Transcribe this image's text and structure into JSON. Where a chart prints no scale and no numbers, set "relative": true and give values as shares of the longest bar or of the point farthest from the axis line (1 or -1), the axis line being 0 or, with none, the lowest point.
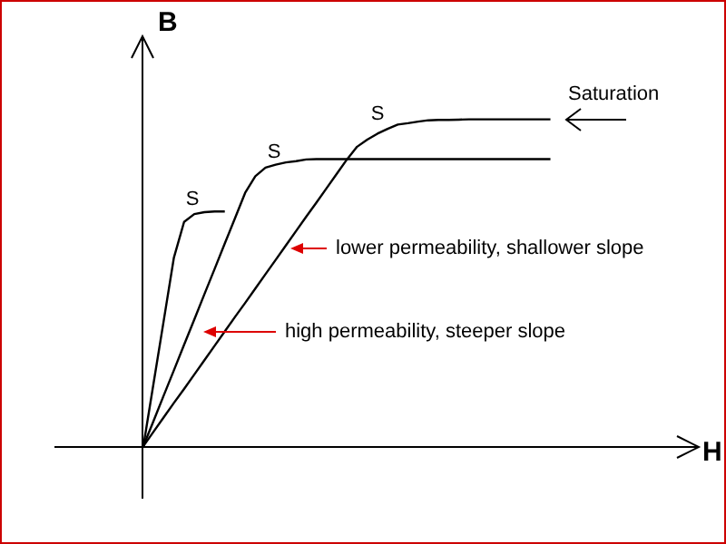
{
  "chart_data": {
    "type": "line",
    "relative": true,
    "ylabel": "B",
    "categories": [
      null,
      null,
      null,
      null,
      null,
      null,
      null,
      null,
      null,
      null,
      null,
      null,
      null,
      null,
      null,
      null,
      null,
      null,
      null,
      null,
      null,
      null,
      null,
      null,
      null,
      null,
      null,
      null,
      null,
      null,
      null,
      null,
      null,
      null,
      null,
      null,
      null,
      null,
      null,
      null,
      null
    ],
    "series": [
      {
        "color": "#000000",
        "values": [
          0,
          0.192,
          0.384,
          0.577,
          0.686,
          0.71,
          0.716,
          0.718,
          0.718,
          null,
          null,
          null,
          null,
          null,
          null,
          null,
          null,
          null,
          null,
          null,
          null,
          null,
          null,
          null,
          null,
          null,
          null,
          null,
          null,
          null,
          null,
          null,
          null,
          null,
          null,
          null,
          null,
          null,
          null,
          null,
          null
        ]
      },
      {
        "color": "#000000",
        "values": [
          0,
          0.077,
          0.155,
          0.232,
          0.31,
          0.387,
          0.465,
          0.542,
          0.62,
          0.697,
          0.775,
          0.826,
          0.852,
          0.861,
          0.868,
          0.872,
          0.877,
          0.878,
          0.878,
          0.878,
          0.878,
          0.878,
          0.878,
          0.878,
          0.878,
          0.878,
          0.878,
          0.878,
          0.878,
          0.878,
          0.878,
          0.878,
          0.878,
          0.878,
          0.878,
          0.878,
          0.878,
          0.878,
          0.878,
          0.878,
          0.878
        ]
      },
      {
        "color": "#000000",
        "values": [
          0,
          0.044,
          0.088,
          0.132,
          0.175,
          0.219,
          0.263,
          0.307,
          0.351,
          0.395,
          0.438,
          0.482,
          0.526,
          0.57,
          0.614,
          0.658,
          0.702,
          0.745,
          0.789,
          0.833,
          0.877,
          0.916,
          0.938,
          0.956,
          0.971,
          0.984,
          0.988,
          0.993,
          0.997,
          0.998,
          0.998,
          0.999,
          1,
          1,
          1,
          1,
          1,
          1,
          1,
          1,
          1
        ]
      }
    ],
    "annotations": [
      "S",
      "S",
      "S",
      "Saturation",
      "lower permeability, shallower slope",
      "high permeability, steeper slope",
      "H"
    ]
  }
}
